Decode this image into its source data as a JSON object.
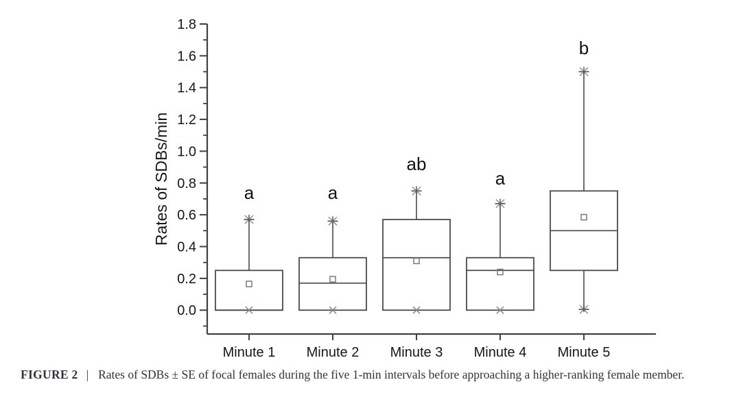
{
  "figure": {
    "caption_label": "FIGURE 2",
    "caption_separator": "|",
    "caption_text": "Rates of SDBs ± SE of focal females during the five 1-min intervals before approaching a higher-ranking female member."
  },
  "chart_data": {
    "type": "box",
    "title": "",
    "xlabel": "",
    "ylabel": "Rates of SDBs/min",
    "ylim": [
      -0.15,
      1.8
    ],
    "y_major_ticks": [
      "0.0",
      "0.2",
      "0.4",
      "0.6",
      "0.8",
      "1.0",
      "1.2",
      "1.4",
      "1.6",
      "1.8"
    ],
    "y_major_step": 0.2,
    "y_minor_step": 0.1,
    "grid": "off",
    "legend": "none",
    "categories": [
      "Minute 1",
      "Minute 2",
      "Minute 3",
      "Minute 4",
      "Minute 5"
    ],
    "boxes": [
      {
        "category": "Minute 1",
        "q1": 0.0,
        "median": 0.0,
        "q3": 0.25,
        "whisker_high": 0.57,
        "whisker_low": null,
        "mean": 0.165,
        "min_marker": 0.0,
        "top_marker": "star",
        "bottom_marker": "x",
        "sig_letter": "a",
        "sig_letter_y": 0.74
      },
      {
        "category": "Minute 2",
        "q1": 0.0,
        "median": 0.17,
        "q3": 0.33,
        "whisker_high": 0.56,
        "whisker_low": null,
        "mean": 0.195,
        "min_marker": 0.0,
        "top_marker": "star",
        "bottom_marker": "x",
        "sig_letter": "a",
        "sig_letter_y": 0.74
      },
      {
        "category": "Minute 3",
        "q1": 0.0,
        "median": 0.33,
        "q3": 0.57,
        "whisker_high": 0.75,
        "whisker_low": null,
        "mean": 0.31,
        "min_marker": 0.0,
        "top_marker": "star",
        "bottom_marker": "x",
        "sig_letter": "ab",
        "sig_letter_y": 0.92
      },
      {
        "category": "Minute 4",
        "q1": 0.0,
        "median": 0.25,
        "q3": 0.33,
        "whisker_high": 0.67,
        "whisker_low": null,
        "mean": 0.24,
        "min_marker": 0.0,
        "top_marker": "star",
        "bottom_marker": "x",
        "sig_letter": "a",
        "sig_letter_y": 0.83
      },
      {
        "category": "Minute 5",
        "q1": 0.25,
        "median": 0.5,
        "q3": 0.75,
        "whisker_high": 1.5,
        "whisker_low": 0.005,
        "mean": 0.585,
        "min_marker": null,
        "top_marker": "star",
        "bottom_marker": "star",
        "sig_letter": "b",
        "sig_letter_y": 1.65
      }
    ],
    "colors": {
      "line": "#3f3f3f",
      "box_line": "#4a4a4a",
      "muted_marker": "#8a8a8a",
      "mean_marker": "#7a7a7a",
      "tick_text": "#161616",
      "letter_text": "#111111",
      "background": "#ffffff"
    }
  }
}
